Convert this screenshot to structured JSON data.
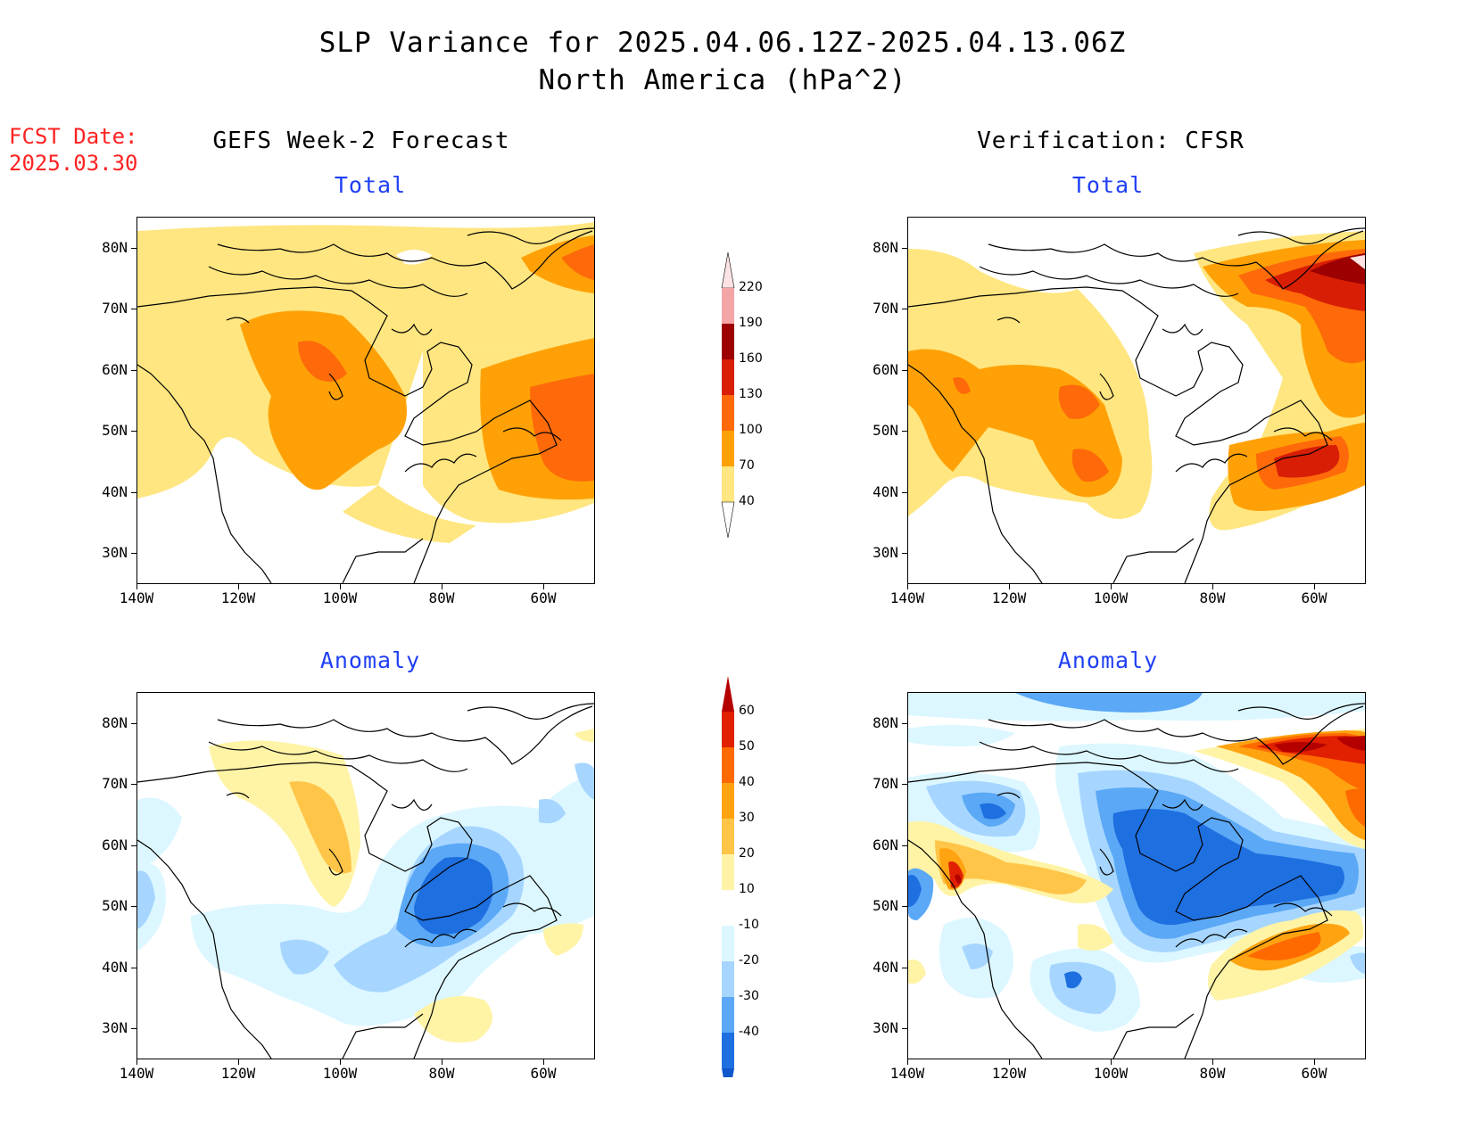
{
  "title": {
    "line1": "SLP Variance for 2025.04.06.12Z-2025.04.13.06Z",
    "line2": "North America (hPa^2)"
  },
  "fcst_date": {
    "label": "FCST Date:",
    "value": "2025.03.30"
  },
  "columns": {
    "left_heading": "GEFS Week-2 Forecast",
    "right_heading": "Verification: CFSR"
  },
  "panels": {
    "top_left_title": "Total",
    "top_right_title": "Total",
    "bottom_left_title": "Anomaly",
    "bottom_right_title": "Anomaly"
  },
  "axes": {
    "lat_labels": [
      "80N",
      "70N",
      "60N",
      "50N",
      "40N",
      "30N"
    ],
    "lon_labels": [
      "140W",
      "120W",
      "100W",
      "80W",
      "60W"
    ]
  },
  "colorbars": {
    "total": {
      "levels": [
        "220",
        "190",
        "160",
        "130",
        "100",
        "70",
        "40"
      ],
      "colors": [
        "#fde3e3",
        "#f4a6a6",
        "#9c0000",
        "#d81e05",
        "#fe6a0a",
        "#ffa106",
        "#ffe680"
      ]
    },
    "anomaly": {
      "levels": [
        "60",
        "50",
        "40",
        "30",
        "20",
        "10",
        "-10",
        "-20",
        "-30",
        "-40"
      ],
      "colors": [
        "#b50000",
        "#e02000",
        "#ff6a00",
        "#ffa310",
        "#ffc549",
        "#fff3a6",
        "#ffffff",
        "#dcf7ff",
        "#a6d6ff",
        "#5ba8f6",
        "#1e6fe0",
        "#1157cc"
      ]
    }
  }
}
